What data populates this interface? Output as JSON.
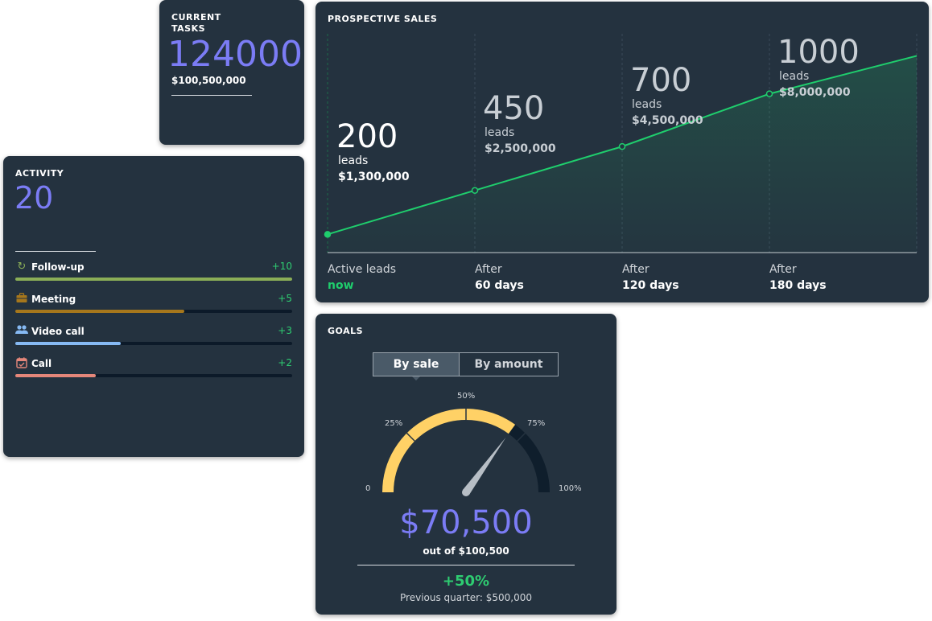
{
  "current_tasks": {
    "title": "CURRENT TASKS",
    "count": "124000",
    "amount": "$100,500,000"
  },
  "activity": {
    "title": "ACTIVITY",
    "count": "20",
    "items": [
      {
        "label": "Follow-up",
        "value": "+10",
        "icon": "refresh-icon",
        "color": "#8bae57",
        "fill": 1.0
      },
      {
        "label": "Meeting",
        "value": "+5",
        "icon": "briefcase-icon",
        "color": "#a6771c",
        "fill": 0.61
      },
      {
        "label": "Video call",
        "value": "+3",
        "icon": "people-icon",
        "color": "#86b9f3",
        "fill": 0.38
      },
      {
        "label": "Call",
        "value": "+2",
        "icon": "calendar-check-icon",
        "color": "#e5877a",
        "fill": 0.29
      }
    ]
  },
  "prospective_sales": {
    "title": "PROSPECTIVE SALES",
    "line_color": "#1fce6d",
    "stages": [
      {
        "count": "200",
        "unit": "leads",
        "amount": "$1,300,000",
        "label": "Active leads",
        "when": "now",
        "leads": 200
      },
      {
        "count": "450",
        "unit": "leads",
        "amount": "$2,500,000",
        "label": "After",
        "when": "60 days",
        "leads": 450
      },
      {
        "count": "700",
        "unit": "leads",
        "amount": "$4,500,000",
        "label": "After",
        "when": "120 days",
        "leads": 700
      },
      {
        "count": "1000",
        "unit": "leads",
        "amount": "$8,000,000",
        "label": "After",
        "when": "180 days",
        "leads": 1000
      }
    ]
  },
  "goals": {
    "title": "GOALS",
    "tabs": [
      "By sale",
      "By amount"
    ],
    "selected_tab": "By sale",
    "gauge_labels": [
      "0",
      "25%",
      "50%",
      "75%",
      "100%"
    ],
    "gauge_value": 0.7,
    "gauge_color": "#ffd166",
    "amount": "$70,500",
    "out_of": "out of $100,500",
    "change": "+50%",
    "previous": "Previous quarter: $500,000"
  }
}
